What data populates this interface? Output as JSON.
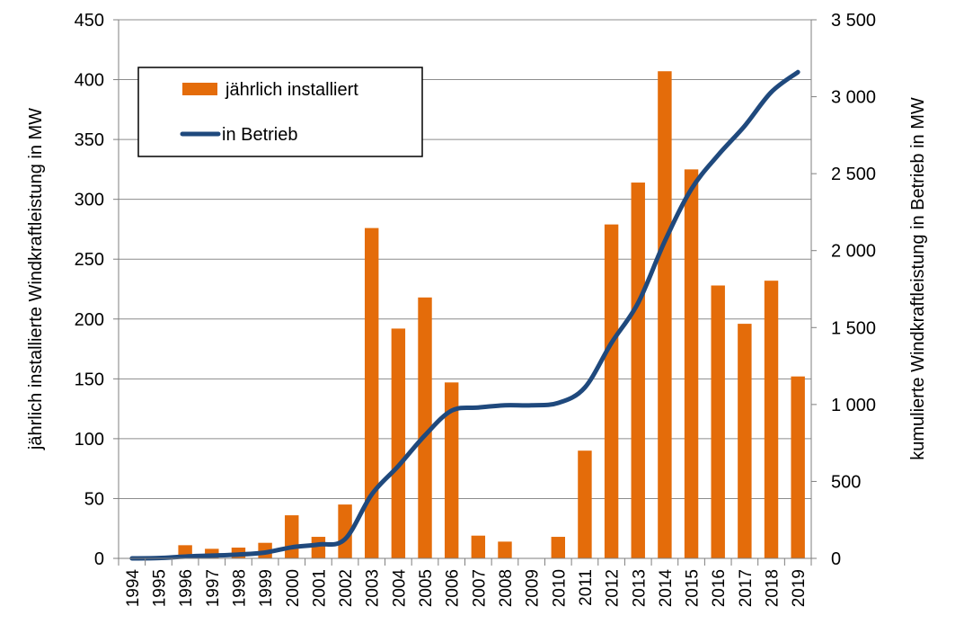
{
  "chart_data": {
    "type": "bar",
    "categories": [
      "1994",
      "1995",
      "1996",
      "1997",
      "1998",
      "1999",
      "2000",
      "2001",
      "2002",
      "2003",
      "2004",
      "2005",
      "2006",
      "2007",
      "2008",
      "2009",
      "2010",
      "2011",
      "2012",
      "2013",
      "2014",
      "2015",
      "2016",
      "2017",
      "2018",
      "2019"
    ],
    "ylabel": "jährlich installierte Windkraftleistung in MW",
    "y2label": "kumulierte Windkraftleistung in Betrieb in MW",
    "ylim": [
      0,
      450
    ],
    "y2lim": [
      0,
      3500
    ],
    "yticks": [
      "0",
      "50",
      "100",
      "150",
      "200",
      "250",
      "300",
      "350",
      "400",
      "450"
    ],
    "y2ticks": [
      "0",
      "500",
      "1 000",
      "1 500",
      "2 000",
      "2 500",
      "3 000",
      "3 500"
    ],
    "grid": true,
    "legend_position": "top-left",
    "series": [
      {
        "name": "jährlich installiert",
        "kind": "bar",
        "axis": "left",
        "color": "#E46C0A",
        "values": [
          0,
          0,
          11,
          8,
          9,
          13,
          36,
          18,
          45,
          276,
          192,
          218,
          147,
          19,
          14,
          0,
          18,
          90,
          279,
          314,
          407,
          325,
          228,
          196,
          232,
          152
        ]
      },
      {
        "name": "in Betrieb",
        "kind": "line",
        "axis": "right",
        "color": "#1F497D",
        "values": [
          0,
          2,
          12,
          18,
          25,
          38,
          72,
          90,
          125,
          415,
          600,
          800,
          960,
          980,
          995,
          995,
          1010,
          1110,
          1400,
          1660,
          2060,
          2400,
          2620,
          2810,
          3030,
          3160
        ]
      }
    ]
  }
}
